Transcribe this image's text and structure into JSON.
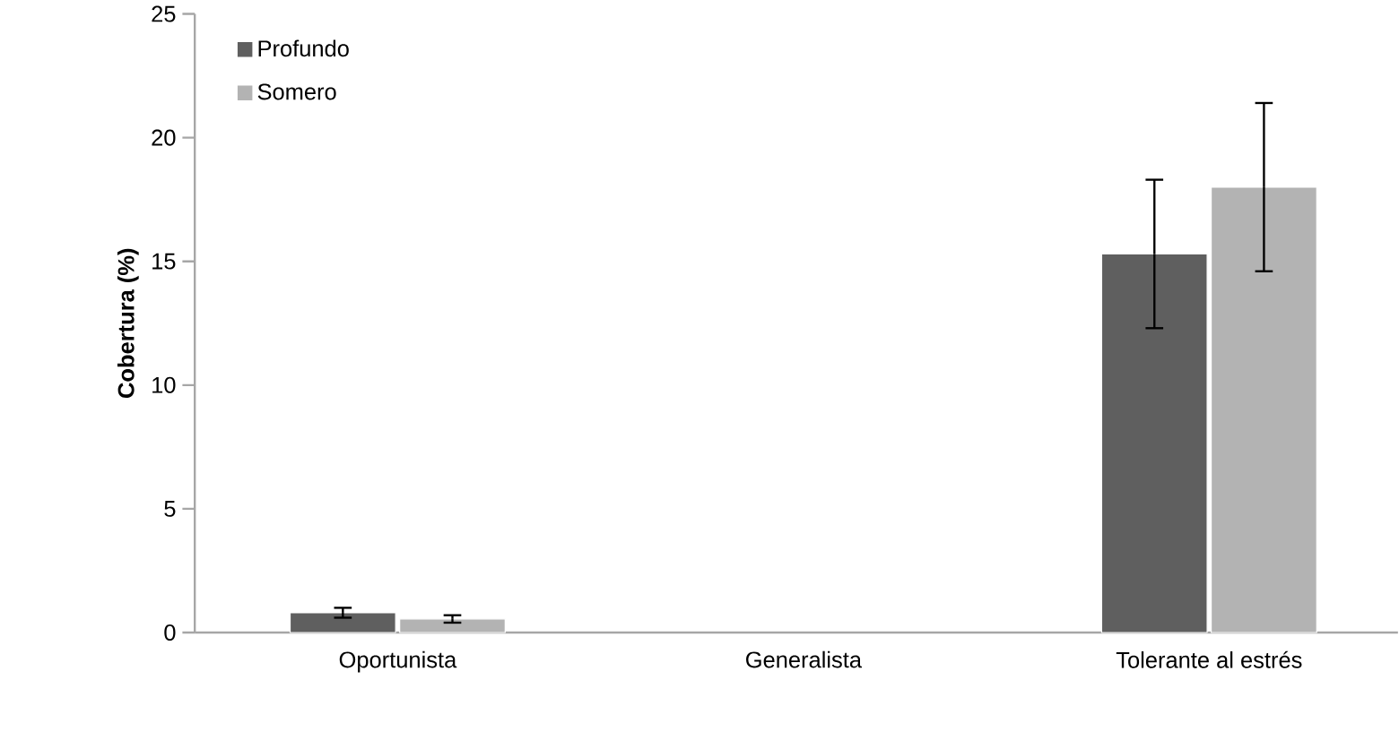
{
  "chart_data": {
    "type": "bar",
    "ylabel": "Cobertura  (%)",
    "categories": [
      "Oportunista",
      "Generalista",
      "Tolerante al estrés"
    ],
    "series": [
      {
        "name": "Profundo",
        "color": "#5f5f5f",
        "values": [
          0.8,
          null,
          15.3
        ],
        "errors": [
          0.2,
          null,
          3.0
        ]
      },
      {
        "name": "Somero",
        "color": "#b3b3b3",
        "values": [
          0.55,
          null,
          18.0
        ],
        "errors": [
          0.15,
          null,
          3.4
        ]
      }
    ],
    "ylim": [
      0,
      25
    ],
    "yticks": [
      0,
      5,
      10,
      15,
      20,
      25
    ],
    "grid": false,
    "legend": "top left"
  }
}
